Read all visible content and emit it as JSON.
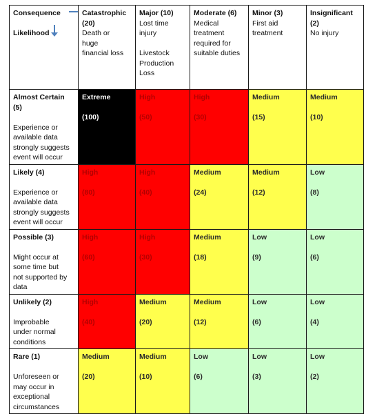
{
  "corner": {
    "consequence_label": "Consequence",
    "likelihood_label": "Likelihood"
  },
  "consequences": [
    {
      "title": "Catastrophic (20)",
      "desc": [
        "Death or",
        "huge",
        "financial loss"
      ]
    },
    {
      "title": "Major (10)",
      "desc": [
        "Lost time",
        "injury",
        "",
        "Livestock",
        "Production",
        "Loss"
      ]
    },
    {
      "title": "Moderate (6)",
      "desc": [
        "Medical",
        "treatment",
        "required for",
        "suitable duties"
      ]
    },
    {
      "title": "Minor (3)",
      "desc": [
        "First aid",
        "treatment"
      ]
    },
    {
      "title": "Insignificant (2)",
      "desc": [
        "No injury"
      ]
    }
  ],
  "rows": [
    {
      "title": "Almost Certain (5)",
      "desc": [
        "Experience or",
        "available data",
        "strongly suggests",
        "event will occur"
      ],
      "cells": [
        {
          "level": "Extreme",
          "value": "(100)",
          "color": "#000000"
        },
        {
          "level": "High",
          "value": "(50)",
          "color": "#ff0000"
        },
        {
          "level": "High",
          "value": "(30)",
          "color": "#ff0000"
        },
        {
          "level": "Medium",
          "value": "(15)",
          "color": "#ffff4d"
        },
        {
          "level": "Medium",
          "value": "(10)",
          "color": "#ffff4d"
        }
      ]
    },
    {
      "title": "Likely (4)",
      "desc": [
        "Experience or",
        "available data",
        "strongly suggests",
        "event will occur"
      ],
      "cells": [
        {
          "level": "High",
          "value": "(80)",
          "color": "#ff0000"
        },
        {
          "level": "High",
          "value": "(40)",
          "color": "#ff0000"
        },
        {
          "level": "Medium",
          "value": "(24)",
          "color": "#ffff4d"
        },
        {
          "level": "Medium",
          "value": "(12)",
          "color": "#ffff4d"
        },
        {
          "level": "Low",
          "value": "(8)",
          "color": "#ccffcc"
        }
      ]
    },
    {
      "title": "Possible (3)",
      "desc": [
        "Might occur at",
        "some time but",
        "not supported by",
        "data"
      ],
      "cells": [
        {
          "level": "High",
          "value": "(60)",
          "color": "#ff0000"
        },
        {
          "level": "High",
          "value": "(30)",
          "color": "#ff0000"
        },
        {
          "level": "Medium",
          "value": "(18)",
          "color": "#ffff4d"
        },
        {
          "level": "Low",
          "value": "(9)",
          "color": "#ccffcc"
        },
        {
          "level": "Low",
          "value": "(6)",
          "color": "#ccffcc"
        }
      ]
    },
    {
      "title": "Unlikely (2)",
      "desc": [
        "Improbable",
        "under normal",
        "conditions"
      ],
      "cells": [
        {
          "level": "High",
          "value": "(40)",
          "color": "#ff0000"
        },
        {
          "level": "Medium",
          "value": "(20)",
          "color": "#ffff4d"
        },
        {
          "level": "Medium",
          "value": "(12)",
          "color": "#ffff4d"
        },
        {
          "level": "Low",
          "value": "(6)",
          "color": "#ccffcc"
        },
        {
          "level": "Low",
          "value": "(4)",
          "color": "#ccffcc"
        }
      ]
    },
    {
      "title": "Rare (1)",
      "desc": [
        "Unforeseen or",
        "may occur in",
        "exceptional",
        "circumstances"
      ],
      "cells": [
        {
          "level": "Medium",
          "value": "(20)",
          "color": "#ffff4d"
        },
        {
          "level": "Medium",
          "value": "(10)",
          "color": "#ffff4d"
        },
        {
          "level": "Low",
          "value": "(6)",
          "color": "#ccffcc"
        },
        {
          "level": "Low",
          "value": "(3)",
          "color": "#ccffcc"
        },
        {
          "level": "Low",
          "value": "(2)",
          "color": "#ccffcc"
        }
      ]
    }
  ]
}
